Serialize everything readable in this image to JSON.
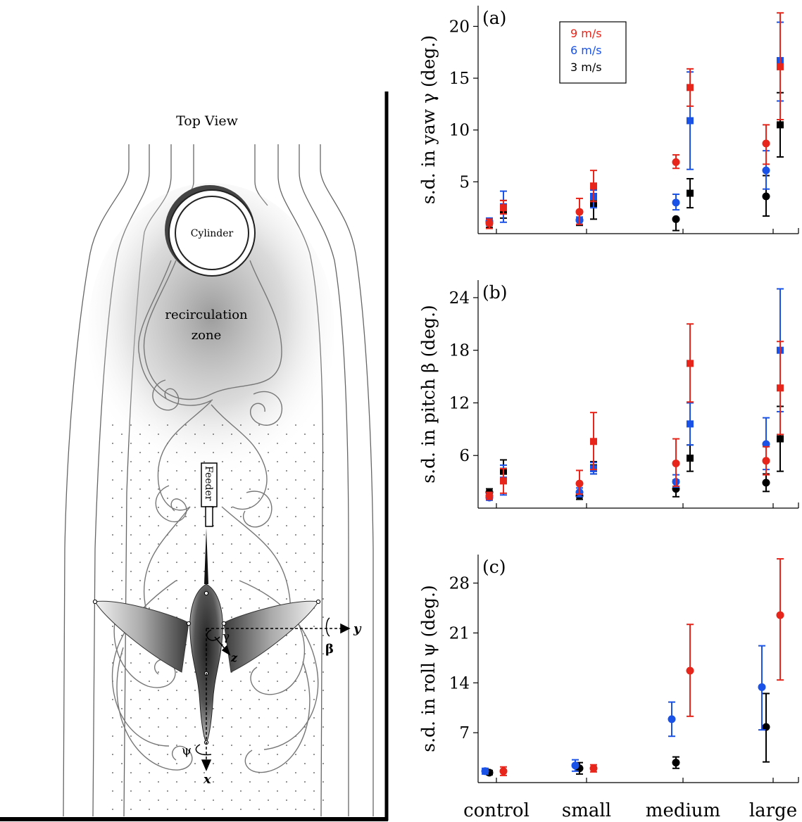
{
  "illustration": {
    "title": "Top View",
    "cylinder_label": "Cylinder",
    "recirc_label_1": "recirculation",
    "recirc_label_2": "zone",
    "feeder_label": "Feeder",
    "axis_y": "y",
    "axis_x": "x",
    "axis_z": "z",
    "angle_beta": "β",
    "angle_gamma": "γ",
    "angle_psi": "ψ"
  },
  "colors": {
    "9 m/s": "#e8251a",
    "6 m/s": "#1a52e8",
    "3 m/s": "#000000"
  },
  "chart_data": [
    {
      "type": "scatter",
      "panel_label": "(a)",
      "ylabel": "s.d. in yaw γ (deg.)",
      "categories": [
        "control",
        "small",
        "medium",
        "large"
      ],
      "yticks": [
        5,
        10,
        15,
        20
      ],
      "ylim": [
        0,
        22
      ],
      "legend": [
        "9 m/s",
        "6 m/s",
        "3 m/s"
      ],
      "legend_position": "top-center",
      "series": [
        {
          "name": "3 m/s",
          "marker": "circle",
          "offset": "left",
          "values": [
            1.1,
            1.3,
            1.4,
            3.6
          ],
          "err_low": [
            0.6,
            0.8,
            0.3,
            1.7
          ],
          "err_high": [
            1.5,
            1.6,
            1.5,
            5.6
          ]
        },
        {
          "name": "6 m/s",
          "marker": "circle",
          "offset": "left",
          "values": [
            1.2,
            1.3,
            3.0,
            6.1
          ],
          "err_low": [
            0.8,
            0.9,
            2.3,
            4.3
          ],
          "err_high": [
            1.5,
            1.6,
            3.8,
            8.0
          ]
        },
        {
          "name": "9 m/s",
          "marker": "circle",
          "offset": "left",
          "values": [
            1.0,
            2.1,
            6.9,
            8.7
          ],
          "err_low": [
            0.5,
            0.9,
            6.3,
            6.7
          ],
          "err_high": [
            1.4,
            3.4,
            7.6,
            10.5
          ]
        },
        {
          "name": "3 m/s",
          "marker": "square",
          "offset": "right",
          "values": [
            2.3,
            2.9,
            3.9,
            10.5
          ],
          "err_low": [
            1.5,
            1.4,
            2.5,
            7.4
          ],
          "err_high": [
            3.2,
            4.2,
            5.3,
            13.6
          ]
        },
        {
          "name": "6 m/s",
          "marker": "square",
          "offset": "right",
          "values": [
            2.6,
            3.6,
            10.9,
            16.7
          ],
          "err_low": [
            1.1,
            2.5,
            6.2,
            12.8
          ],
          "err_high": [
            4.1,
            4.2,
            15.6,
            20.4
          ]
        },
        {
          "name": "9 m/s",
          "marker": "square",
          "offset": "right",
          "values": [
            2.5,
            4.6,
            14.1,
            16.1
          ],
          "err_low": [
            1.9,
            3.1,
            12.3,
            11.0
          ],
          "err_high": [
            3.2,
            6.1,
            15.9,
            21.3
          ]
        }
      ]
    },
    {
      "type": "scatter",
      "panel_label": "(b)",
      "ylabel": "s.d. in pitch β (deg.)",
      "categories": [
        "control",
        "small",
        "medium",
        "large"
      ],
      "yticks": [
        6,
        12,
        18,
        24
      ],
      "ylim": [
        0,
        26
      ],
      "series": [
        {
          "name": "3 m/s",
          "marker": "circle",
          "offset": "left",
          "values": [
            1.8,
            1.4,
            2.2,
            2.9
          ],
          "err_low": [
            1.4,
            1.0,
            1.3,
            1.9
          ],
          "err_high": [
            2.2,
            1.9,
            3.2,
            3.9
          ]
        },
        {
          "name": "6 m/s",
          "marker": "circle",
          "offset": "left",
          "values": [
            1.2,
            1.8,
            3.0,
            7.3
          ],
          "err_low": [
            0.9,
            1.3,
            2.4,
            4.4
          ],
          "err_high": [
            1.6,
            2.3,
            3.8,
            10.3
          ]
        },
        {
          "name": "9 m/s",
          "marker": "circle",
          "offset": "left",
          "values": [
            1.4,
            2.8,
            5.1,
            5.4
          ],
          "err_low": [
            1.0,
            1.6,
            2.5,
            3.8
          ],
          "err_high": [
            1.8,
            4.3,
            7.9,
            7.0
          ]
        },
        {
          "name": "3 m/s",
          "marker": "square",
          "offset": "right",
          "values": [
            4.2,
            4.6,
            5.7,
            7.9
          ],
          "err_low": [
            3.0,
            3.9,
            4.2,
            4.2
          ],
          "err_high": [
            5.5,
            5.3,
            7.2,
            11.6
          ]
        },
        {
          "name": "6 m/s",
          "marker": "square",
          "offset": "right",
          "values": [
            3.2,
            4.5,
            9.6,
            18.0
          ],
          "err_low": [
            1.5,
            3.9,
            7.2,
            11.0
          ],
          "err_high": [
            4.9,
            5.2,
            12.0,
            25.0
          ]
        },
        {
          "name": "9 m/s",
          "marker": "square",
          "offset": "right",
          "values": [
            3.1,
            7.6,
            16.5,
            13.7
          ],
          "err_low": [
            1.7,
            4.4,
            12.1,
            8.4
          ],
          "err_high": [
            4.5,
            10.9,
            21.0,
            19.0
          ]
        }
      ]
    },
    {
      "type": "scatter",
      "panel_label": "(c)",
      "ylabel": "s.d. in roll ψ (deg.)",
      "categories": [
        "control",
        "small",
        "medium",
        "large"
      ],
      "yticks": [
        7,
        14,
        21,
        28
      ],
      "ylim": [
        0,
        32
      ],
      "series": [
        {
          "name": "3 m/s",
          "marker": "circle",
          "offset": "left",
          "values": [
            1.4,
            2.0,
            2.8,
            7.8
          ],
          "err_low": [
            1.1,
            1.2,
            2.0,
            2.9
          ],
          "err_high": [
            1.7,
            2.8,
            3.6,
            12.5
          ]
        },
        {
          "name": "6 m/s",
          "marker": "circle",
          "offset": "far-left",
          "values": [
            1.6,
            2.4,
            8.9,
            13.4
          ],
          "err_low": [
            1.2,
            1.6,
            6.5,
            7.4
          ],
          "err_high": [
            2.0,
            3.2,
            11.3,
            19.2
          ]
        },
        {
          "name": "9 m/s",
          "marker": "circle",
          "offset": "right",
          "values": [
            1.6,
            2.0,
            15.7,
            23.5
          ],
          "err_low": [
            1.0,
            1.5,
            9.3,
            14.4
          ],
          "err_high": [
            2.2,
            2.5,
            22.2,
            31.4
          ]
        }
      ]
    }
  ],
  "shared_xlabels": [
    "control",
    "small",
    "medium",
    "large"
  ]
}
